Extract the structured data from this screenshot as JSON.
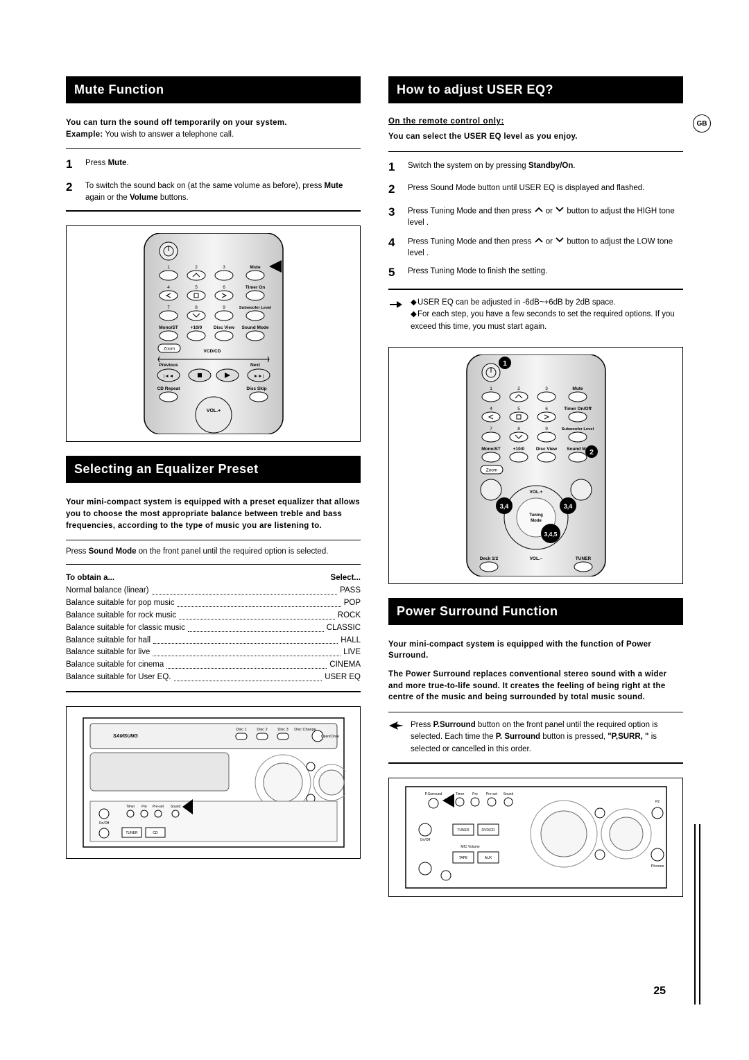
{
  "gb_badge": "GB",
  "page_number": "25",
  "left": {
    "mute": {
      "title": "Mute Function",
      "intro_bold": "You can turn the sound off temporarily on your system.",
      "intro_example_label": "Example:",
      "intro_example_text": " You wish to answer a telephone call.",
      "steps": [
        {
          "n": "1",
          "text": "Press <b>Mute</b>."
        },
        {
          "n": "2",
          "text": "To switch the sound back on (at the same volume as before), press <b>Mute</b> again or the <b>Volume</b> buttons."
        }
      ],
      "remote": {
        "row1": [
          "1",
          "2",
          "3",
          "Mute"
        ],
        "row2": [
          "4",
          "5",
          "6",
          "Timer On"
        ],
        "row3": [
          "7",
          "8",
          "9",
          "Subwoofer Level"
        ],
        "row4": [
          "Mono/ST",
          "+10/0",
          "Disc View",
          "Sound Mode"
        ],
        "zoom": "Zoom",
        "vcdcd": "VCD/CD",
        "prev": "Previous",
        "next": "Next",
        "cdrepeat": "CD Repeat",
        "discskip": "Disc Skip",
        "vol": "VOL.+"
      }
    },
    "eq_preset": {
      "title": "Selecting an Equalizer Preset",
      "intro": "Your mini-compact system is equipped with a preset equalizer that allows you to choose the most appropriate balance between treble and bass frequencies, according to the type of music you are listening to.",
      "press_text_pre": "Press ",
      "press_text_bold": "Sound Mode",
      "press_text_post": " on the front panel until the required option is selected.",
      "header_left": "To obtain a...",
      "header_right": "Select...",
      "rows": [
        {
          "l": "Normal balance (linear)",
          "r": "PASS"
        },
        {
          "l": "Balance suitable for pop music",
          "r": "POP"
        },
        {
          "l": "Balance suitable for rock music",
          "r": "ROCK"
        },
        {
          "l": "Balance suitable for classic music",
          "r": "CLASSIC"
        },
        {
          "l": "Balance suitable for hall",
          "r": "HALL"
        },
        {
          "l": "Balance suitable for live",
          "r": "LIVE"
        },
        {
          "l": "Balance suitable for cinema",
          "r": "CINEMA"
        },
        {
          "l": "Balance suitable for User EQ.",
          "r": "USER EQ"
        }
      ]
    }
  },
  "right": {
    "user_eq": {
      "title": "How to adjust USER EQ?",
      "remote_only": "On the remote control only:",
      "subintro": "You can select the USER EQ level as you enjoy.",
      "steps": [
        {
          "n": "1",
          "text": "Switch the system on by pressing <b>Standby/On</b>."
        },
        {
          "n": "2",
          "text": "Press Sound Mode button until USER EQ is displayed and flashed."
        },
        {
          "n": "3",
          "text": "Press Tuning Mode and then press <span class='chev'><svg width='14' height='10'><polyline points='2,8 7,3 12,8' fill='none' stroke='#000' stroke-width='1.8'/></svg></span> or <span class='chev'><svg width='14' height='10'><polyline points='2,2 7,7 12,2' fill='none' stroke='#000' stroke-width='1.8'/></svg></span> button to adjust the HIGH tone level ."
        },
        {
          "n": "4",
          "text": "Press Tuning Mode and then press <span class='chev'><svg width='14' height='10'><polyline points='2,8 7,3 12,8' fill='none' stroke='#000' stroke-width='1.8'/></svg></span> or <span class='chev'><svg width='14' height='10'><polyline points='2,2 7,7 12,2' fill='none' stroke='#000' stroke-width='1.8'/></svg></span> button to adjust the LOW tone level ."
        },
        {
          "n": "5",
          "text": "Press Tuning Mode to finish the setting."
        }
      ],
      "note1": "USER EQ can be adjusted in -6dB~+6dB by 2dB space.",
      "note2": "For each step, you have a few seconds to set the required options. If you exceed this time, you must start again.",
      "remote": {
        "callouts": [
          "1",
          "2",
          "3,4",
          "3,4",
          "3,4,5"
        ],
        "row1": [
          "1",
          "2",
          "3",
          "Mute"
        ],
        "row2": [
          "4",
          "5",
          "6",
          "Timer On/Off"
        ],
        "row3": [
          "7",
          "8",
          "9",
          "Subwoofer Level"
        ],
        "row4": [
          "Mono/ST",
          "+10/0",
          "Disc View",
          "Sound M"
        ],
        "zoom": "Zoom",
        "vol_plus": "VOL.+",
        "tuning": "Tuning Mode",
        "deck": "Deck 1/2",
        "vol_minus": "VOL.–",
        "tuner": "TUNER"
      }
    },
    "psurr": {
      "title": "Power Surround Function",
      "intro1": "Your mini-compact system is equipped with the function of Power Surround.",
      "intro2": "The Power Surround replaces conventional stereo sound with a wider and more true-to-life sound. It creates the feeling of being right at the centre of the music and being surrounded by total music sound.",
      "press_pre": "Press ",
      "press_b1": "P.Surround",
      "press_mid1": " button on the front panel until the required option is selected. Each time the ",
      "press_b2": "P. Surround",
      "press_mid2": " button is pressed, ",
      "press_b3": "\"P,SURR, \"",
      "press_post": " is selected or cancelled in this order."
    }
  }
}
